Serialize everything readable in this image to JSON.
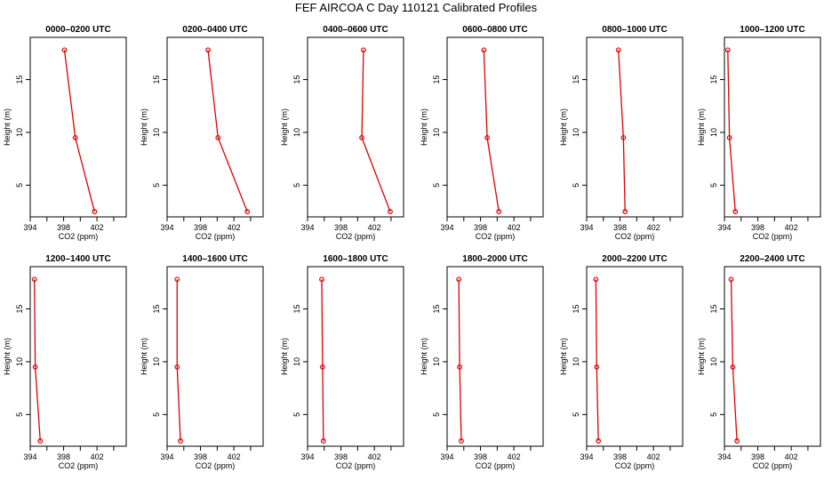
{
  "chart_data": {
    "type": "line",
    "title": "FEF AIRCOA C  Day 110121  Calibrated Profiles",
    "xlabel": "CO2 (ppm)",
    "ylabel": "Height (m)",
    "xlim": [
      394,
      405.5
    ],
    "ylim": [
      2,
      19
    ],
    "xticks": [
      394,
      398,
      402
    ],
    "yticks": [
      5,
      10,
      15
    ],
    "heights": [
      17.8,
      9.5,
      2.5
    ],
    "series": [
      {
        "name": "0000–0200 UTC",
        "values": [
          398.1,
          399.4,
          401.7
        ]
      },
      {
        "name": "0200–0400 UTC",
        "values": [
          398.9,
          400.1,
          403.6
        ]
      },
      {
        "name": "0400–0600 UTC",
        "values": [
          400.7,
          400.5,
          403.9
        ]
      },
      {
        "name": "0600–0800 UTC",
        "values": [
          398.4,
          398.8,
          400.2
        ]
      },
      {
        "name": "0800–1000 UTC",
        "values": [
          397.8,
          398.4,
          398.6
        ]
      },
      {
        "name": "1000–1200 UTC",
        "values": [
          394.4,
          394.6,
          395.3
        ]
      },
      {
        "name": "1200–1400 UTC",
        "values": [
          394.5,
          394.6,
          395.2
        ]
      },
      {
        "name": "1400–1600 UTC",
        "values": [
          395.2,
          395.2,
          395.6
        ]
      },
      {
        "name": "1600–1800 UTC",
        "values": [
          395.7,
          395.8,
          395.9
        ]
      },
      {
        "name": "1800–2000 UTC",
        "values": [
          395.4,
          395.5,
          395.7
        ]
      },
      {
        "name": "2000–2200 UTC",
        "values": [
          395.1,
          395.2,
          395.4
        ]
      },
      {
        "name": "2200–2400 UTC",
        "values": [
          394.8,
          395.0,
          395.5
        ]
      }
    ]
  },
  "colors": {
    "line": "#dd0000",
    "axis": "#000000"
  }
}
